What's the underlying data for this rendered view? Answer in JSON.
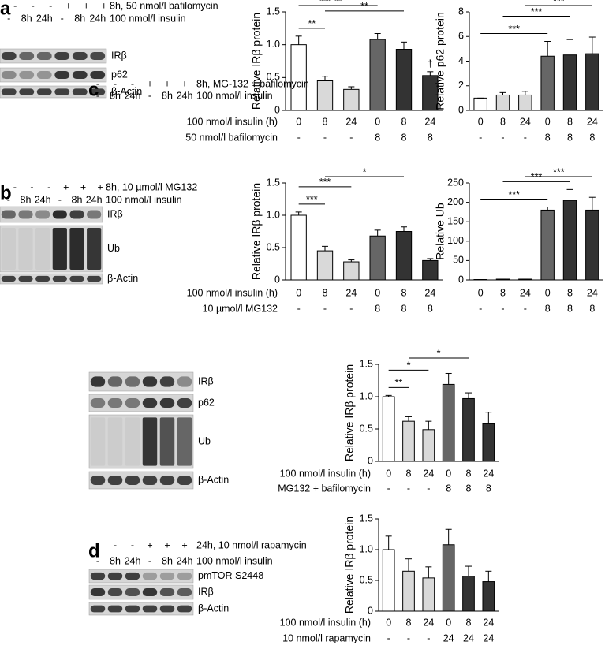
{
  "chart_data": [
    {
      "type": "bar",
      "ylabel": "Relative IRβ protein",
      "ylim": [
        0,
        1.5
      ],
      "yticks": [
        0,
        0.5,
        {
          "value": 1,
          "label": "1.0"
        },
        1.5
      ],
      "categories": [
        "0",
        "8",
        "24",
        "0",
        "8",
        "24"
      ],
      "categories2": [
        "-",
        "-",
        "-",
        "8",
        "8",
        "8"
      ],
      "row_labels": [
        "100 nmol/l insulin (h)",
        "50 nmol/l bafilomycin"
      ],
      "values": [
        1.0,
        0.45,
        0.32,
        1.08,
        0.93,
        0.53
      ],
      "errors": [
        0.13,
        0.07,
        0.04,
        0.09,
        0.11,
        0.06
      ],
      "colors": [
        "#ffffff",
        "#d9d9d9",
        "#d9d9d9",
        "#666666",
        "#333333",
        "#333333"
      ],
      "annotations": [
        {
          "from": 0,
          "to": 1,
          "label": "**"
        },
        {
          "from": 1,
          "to": 4,
          "label": "**"
        },
        {
          "from": 0,
          "to": 2,
          "label": "***"
        },
        {
          "from": 0,
          "to": 3,
          "label": "**"
        }
      ],
      "bar_notes": [
        null,
        null,
        null,
        null,
        null,
        "†"
      ]
    },
    {
      "type": "bar",
      "ylabel": "Relative p62 protein",
      "ylim": [
        0,
        8
      ],
      "yticks": [
        0,
        2,
        4,
        6,
        8
      ],
      "categories": [
        "0",
        "8",
        "24",
        "0",
        "8",
        "24"
      ],
      "categories2": [
        "-",
        "-",
        "-",
        "8",
        "8",
        "8"
      ],
      "row_labels": [],
      "values": [
        1.0,
        1.25,
        1.25,
        4.4,
        4.5,
        4.6
      ],
      "errors": [
        0,
        0.2,
        0.3,
        1.2,
        1.25,
        1.35
      ],
      "colors": [
        "#ffffff",
        "#d9d9d9",
        "#d9d9d9",
        "#666666",
        "#333333",
        "#333333"
      ],
      "annotations": [
        {
          "from": 0,
          "to": 3,
          "label": "***"
        },
        {
          "from": 1,
          "to": 4,
          "label": "***"
        },
        {
          "from": 2,
          "to": 5,
          "label": "***"
        }
      ],
      "bar_notes": []
    },
    {
      "type": "bar",
      "ylabel": "Relative IRβ protein",
      "ylim": [
        0,
        1.5
      ],
      "yticks": [
        0,
        0.5,
        {
          "value": 1,
          "label": "1.0"
        },
        1.5
      ],
      "categories": [
        "0",
        "8",
        "24",
        "0",
        "8",
        "24"
      ],
      "categories2": [
        "-",
        "-",
        "-",
        "8",
        "8",
        "8"
      ],
      "row_labels": [
        "100 nmol/l insulin (h)",
        "10 µmol/l MG132"
      ],
      "values": [
        1.0,
        0.45,
        0.28,
        0.68,
        0.75,
        0.3
      ],
      "errors": [
        0.05,
        0.07,
        0.03,
        0.09,
        0.07,
        0.03
      ],
      "colors": [
        "#ffffff",
        "#d9d9d9",
        "#d9d9d9",
        "#666666",
        "#333333",
        "#333333"
      ],
      "annotations": [
        {
          "from": 0,
          "to": 1,
          "label": "***"
        },
        {
          "from": 0,
          "to": 2,
          "label": "***"
        },
        {
          "from": 1,
          "to": 4,
          "label": "*"
        }
      ],
      "bar_notes": []
    },
    {
      "type": "bar",
      "ylabel": "Relative Ub",
      "ylim": [
        0,
        250
      ],
      "yticks": [
        0,
        50,
        100,
        150,
        200,
        250
      ],
      "categories": [
        "0",
        "8",
        "24",
        "0",
        "8",
        "24"
      ],
      "categories2": [
        "-",
        "-",
        "-",
        "8",
        "8",
        "8"
      ],
      "row_labels": [],
      "values": [
        1,
        2,
        2,
        180,
        205,
        180
      ],
      "errors": [
        0,
        0,
        0,
        8,
        28,
        33
      ],
      "colors": [
        "#ffffff",
        "#d9d9d9",
        "#d9d9d9",
        "#666666",
        "#333333",
        "#333333"
      ],
      "annotations": [
        {
          "from": 0,
          "to": 3,
          "label": "***"
        },
        {
          "from": 1,
          "to": 4,
          "label": "***"
        },
        {
          "from": 2,
          "to": 5,
          "label": "***"
        }
      ],
      "bar_notes": []
    },
    {
      "type": "bar",
      "ylabel": "Relative IRβ protein",
      "ylim": [
        0,
        1.5
      ],
      "yticks": [
        0,
        0.5,
        {
          "value": 1,
          "label": "1.0"
        },
        1.5
      ],
      "categories": [
        "0",
        "8",
        "24",
        "0",
        "8",
        "24"
      ],
      "categories2": [
        "-",
        "-",
        "-",
        "8",
        "8",
        "8"
      ],
      "row_labels": [
        "100 nmol/l insulin (h)",
        "MG132 + bafilomycin"
      ],
      "values": [
        1.0,
        0.62,
        0.49,
        1.19,
        0.97,
        0.58
      ],
      "errors": [
        0.02,
        0.07,
        0.13,
        0.17,
        0.09,
        0.18
      ],
      "colors": [
        "#ffffff",
        "#d9d9d9",
        "#d9d9d9",
        "#666666",
        "#333333",
        "#333333"
      ],
      "annotations": [
        {
          "from": 0,
          "to": 1,
          "label": "**"
        },
        {
          "from": 0,
          "to": 2,
          "label": "*"
        },
        {
          "from": 1,
          "to": 4,
          "label": "*"
        }
      ],
      "bar_notes": []
    },
    {
      "type": "bar",
      "ylabel": "Relative IRβ protein",
      "ylim": [
        0,
        1.5
      ],
      "yticks": [
        0,
        0.5,
        {
          "value": 1,
          "label": "1.0"
        },
        1.5
      ],
      "categories": [
        "0",
        "8",
        "24",
        "0",
        "8",
        "24"
      ],
      "categories2": [
        "-",
        "-",
        "-",
        "24",
        "24",
        "24"
      ],
      "row_labels": [
        "100 nmol/l insulin (h)",
        "10 nmol/l rapamycin"
      ],
      "values": [
        1.0,
        0.65,
        0.54,
        1.08,
        0.57,
        0.48
      ],
      "errors": [
        0.22,
        0.2,
        0.18,
        0.25,
        0.16,
        0.17
      ],
      "colors": [
        "#ffffff",
        "#d9d9d9",
        "#d9d9d9",
        "#666666",
        "#333333",
        "#333333"
      ],
      "annotations": [],
      "bar_notes": []
    }
  ],
  "blots": [
    {
      "letter": "a",
      "header1": [
        "-",
        "-",
        "-",
        "+",
        "+",
        "+"
      ],
      "header1_label": "8h, 50 nmol/l bafilomycin",
      "header2": [
        "-",
        "8h",
        "24h",
        "-",
        "8h",
        "24h"
      ],
      "header2_label": "100 nmol/l insulin",
      "bands": [
        "IRβ",
        "p62",
        "β-Actin"
      ]
    },
    {
      "letter": "b",
      "header1": [
        "-",
        "-",
        "-",
        "+",
        "+",
        "+"
      ],
      "header1_label": "8h, 10 µmol/l MG132",
      "header2": [
        "-",
        "8h",
        "24h",
        "-",
        "8h",
        "24h"
      ],
      "header2_label": "100 nmol/l insulin",
      "bands": [
        "IRβ",
        "Ub",
        "β-Actin"
      ]
    },
    {
      "letter": "c",
      "header1": [
        "-",
        "-",
        "-",
        "+",
        "+",
        "+"
      ],
      "header1_label": "8h, MG-132 + bafilomycin",
      "header2": [
        "-",
        "8h",
        "24h",
        "-",
        "8h",
        "24h"
      ],
      "header2_label": "100 nmol/l insulin",
      "bands": [
        "IRβ",
        "p62",
        "Ub",
        "β-Actin"
      ]
    },
    {
      "letter": "d",
      "header1": [
        "-",
        "-",
        "-",
        "+",
        "+",
        "+"
      ],
      "header1_label": "24h, 10 nmol/l rapamycin",
      "header2": [
        "-",
        "8h",
        "24h",
        "-",
        "8h",
        "24h"
      ],
      "header2_label": "100 nmol/l insulin",
      "bands": [
        "pmTOR S2448",
        "IRβ",
        "β-Actin"
      ]
    }
  ]
}
